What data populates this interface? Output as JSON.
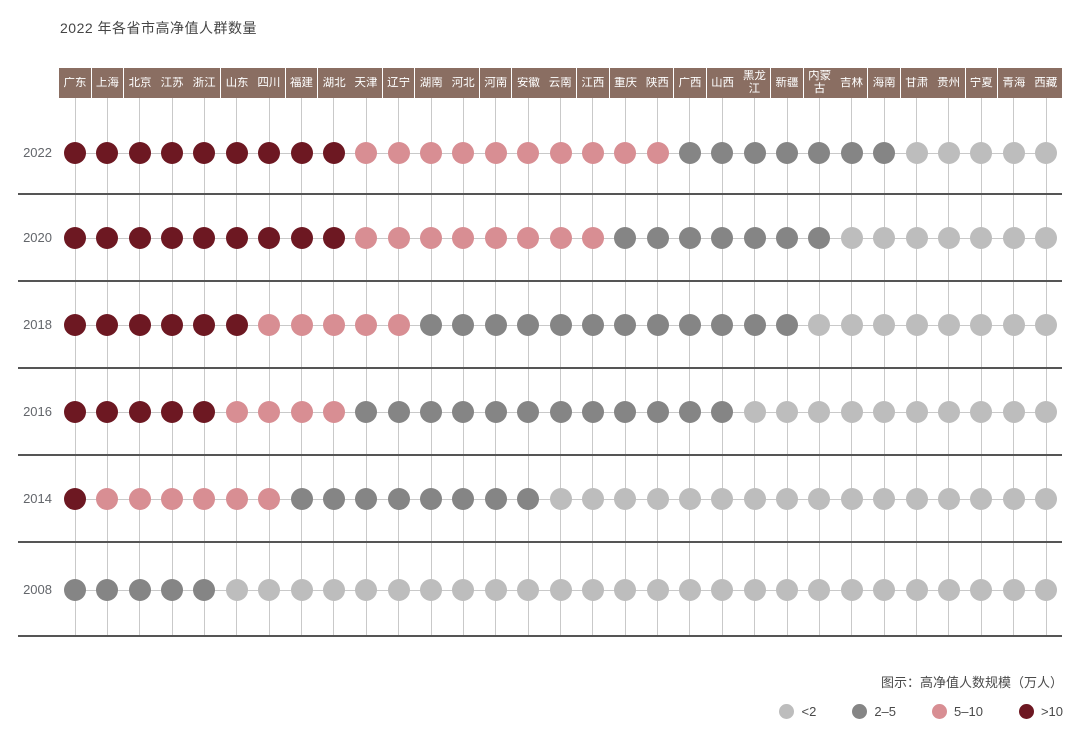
{
  "title": "2022 年各省市高净值人群数量",
  "colors": {
    "header_bg": "#8a6e62",
    "header_text": "#ffffff",
    "grid_line": "#c9c9c9",
    "separator_line": "#555555",
    "year_label": "#63666b",
    "title_text": "#454545",
    "legend_text": "#4a4a4a",
    "lt2": "#bdbdbd",
    "2to5": "#858585",
    "5to10": "#d88e93",
    "gt10": "#6d1822"
  },
  "chart_data": {
    "type": "heatmap",
    "subtype": "categorical-dot-matrix",
    "title": "2022 年各省市高净值人群数量",
    "xlabel": "",
    "ylabel": "",
    "unit": "万人",
    "value_scale": {
      "lt2": "<2",
      "2to5": "2–5",
      "5to10": "5–10",
      "gt10": ">10"
    },
    "column_groups": [
      [
        "广东"
      ],
      [
        "上海"
      ],
      [
        "北京",
        "江苏",
        "浙江"
      ],
      [
        "山东",
        "四川"
      ],
      [
        "福建"
      ],
      [
        "湖北",
        "天津"
      ],
      [
        "辽宁"
      ],
      [
        "湖南",
        "河北"
      ],
      [
        "河南"
      ],
      [
        "安徽",
        "云南"
      ],
      [
        "江西"
      ],
      [
        "重庆",
        "陕西"
      ],
      [
        "广西"
      ],
      [
        "山西",
        "黑龙江"
      ],
      [
        "新疆"
      ],
      [
        "内蒙古",
        "吉林"
      ],
      [
        "海南"
      ],
      [
        "甘肃",
        "贵州"
      ],
      [
        "宁夏"
      ],
      [
        "青海",
        "西藏"
      ]
    ],
    "rows": [
      {
        "year": "2022",
        "values": [
          "gt10",
          "gt10",
          "gt10",
          "gt10",
          "gt10",
          "gt10",
          "gt10",
          "gt10",
          "gt10",
          "5to10",
          "5to10",
          "5to10",
          "5to10",
          "5to10",
          "5to10",
          "5to10",
          "5to10",
          "5to10",
          "5to10",
          "2to5",
          "2to5",
          "2to5",
          "2to5",
          "2to5",
          "2to5",
          "2to5",
          "lt2",
          "lt2",
          "lt2",
          "lt2",
          "lt2"
        ]
      },
      {
        "year": "2020",
        "values": [
          "gt10",
          "gt10",
          "gt10",
          "gt10",
          "gt10",
          "gt10",
          "gt10",
          "gt10",
          "gt10",
          "5to10",
          "5to10",
          "5to10",
          "5to10",
          "5to10",
          "5to10",
          "5to10",
          "5to10",
          "2to5",
          "2to5",
          "2to5",
          "2to5",
          "2to5",
          "2to5",
          "2to5",
          "lt2",
          "lt2",
          "lt2",
          "lt2",
          "lt2",
          "lt2",
          "lt2"
        ]
      },
      {
        "year": "2018",
        "values": [
          "gt10",
          "gt10",
          "gt10",
          "gt10",
          "gt10",
          "gt10",
          "5to10",
          "5to10",
          "5to10",
          "5to10",
          "5to10",
          "2to5",
          "2to5",
          "2to5",
          "2to5",
          "2to5",
          "2to5",
          "2to5",
          "2to5",
          "2to5",
          "2to5",
          "2to5",
          "2to5",
          "lt2",
          "lt2",
          "lt2",
          "lt2",
          "lt2",
          "lt2",
          "lt2",
          "lt2"
        ]
      },
      {
        "year": "2016",
        "values": [
          "gt10",
          "gt10",
          "gt10",
          "gt10",
          "gt10",
          "5to10",
          "5to10",
          "5to10",
          "5to10",
          "2to5",
          "2to5",
          "2to5",
          "2to5",
          "2to5",
          "2to5",
          "2to5",
          "2to5",
          "2to5",
          "2to5",
          "2to5",
          "2to5",
          "lt2",
          "lt2",
          "lt2",
          "lt2",
          "lt2",
          "lt2",
          "lt2",
          "lt2",
          "lt2",
          "lt2"
        ]
      },
      {
        "year": "2014",
        "values": [
          "gt10",
          "5to10",
          "5to10",
          "5to10",
          "5to10",
          "5to10",
          "5to10",
          "2to5",
          "2to5",
          "2to5",
          "2to5",
          "2to5",
          "2to5",
          "2to5",
          "2to5",
          "lt2",
          "lt2",
          "lt2",
          "lt2",
          "lt2",
          "lt2",
          "lt2",
          "lt2",
          "lt2",
          "lt2",
          "lt2",
          "lt2",
          "lt2",
          "lt2",
          "lt2",
          "lt2"
        ]
      },
      {
        "year": "2008",
        "values": [
          "2to5",
          "2to5",
          "2to5",
          "2to5",
          "2to5",
          "lt2",
          "lt2",
          "lt2",
          "lt2",
          "lt2",
          "lt2",
          "lt2",
          "lt2",
          "lt2",
          "lt2",
          "lt2",
          "lt2",
          "lt2",
          "lt2",
          "lt2",
          "lt2",
          "lt2",
          "lt2",
          "lt2",
          "lt2",
          "lt2",
          "lt2",
          "lt2",
          "lt2",
          "lt2",
          "lt2"
        ]
      }
    ]
  },
  "legend": {
    "title": "图示：高净值人数规模（万人）",
    "items": [
      {
        "key": "lt2",
        "label": "<2"
      },
      {
        "key": "2to5",
        "label": "2–5"
      },
      {
        "key": "5to10",
        "label": "5–10"
      },
      {
        "key": "gt10",
        "label": ">10"
      }
    ]
  }
}
